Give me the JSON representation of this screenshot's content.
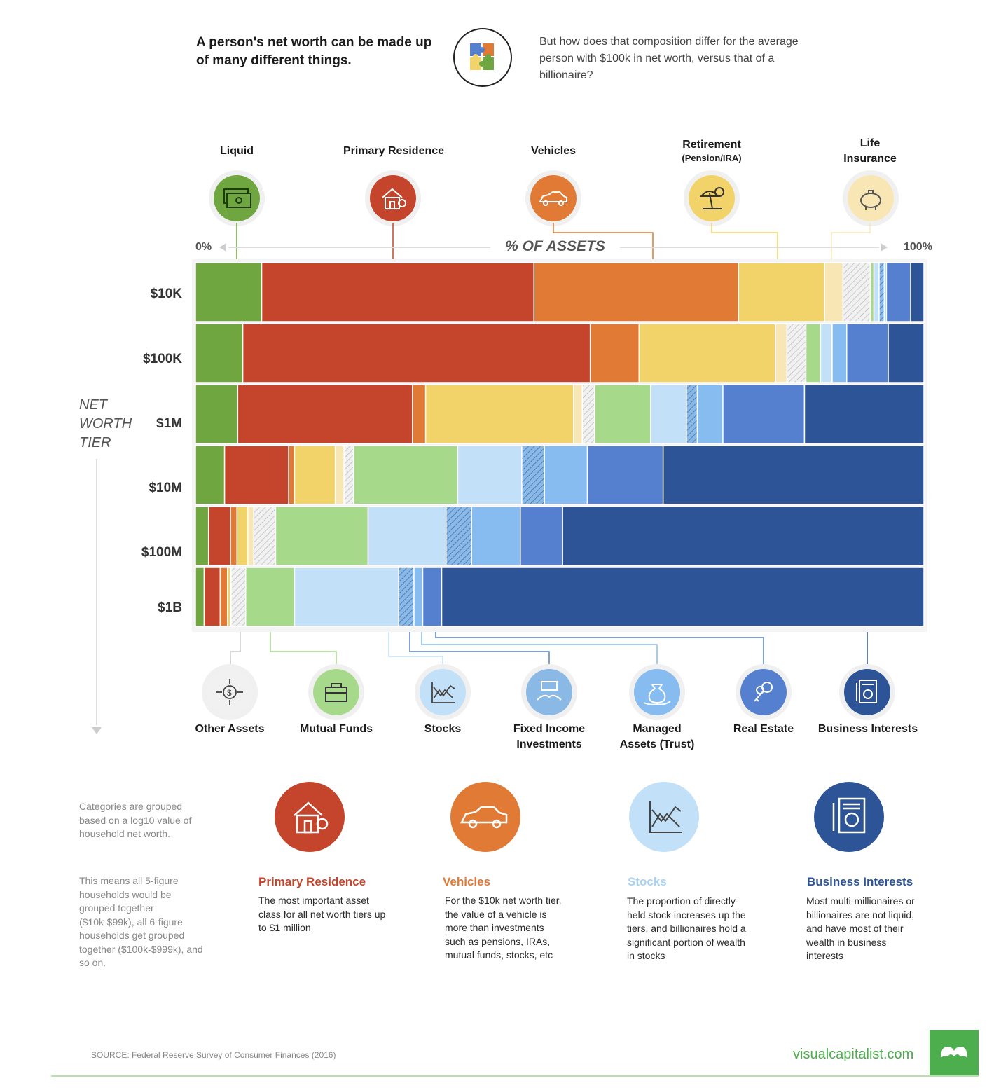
{
  "intro": {
    "left_text": "A person's net worth can be made up of many different things.",
    "right_text": "But how does that composition differ for the average person with $100k in net worth, versus that of a billionaire?",
    "icon": "puzzle-icon"
  },
  "axis": {
    "left": "0%",
    "title": "% OF ASSETS",
    "right": "100%"
  },
  "side_title": [
    "NET",
    "WORTH",
    "TIER"
  ],
  "top_categories": [
    {
      "label": "Liquid",
      "sub": "",
      "icon": "cash-icon",
      "color": "#6fa63f"
    },
    {
      "label": "Primary Residence",
      "sub": "",
      "icon": "house-icon",
      "color": "#c4452c"
    },
    {
      "label": "Vehicles",
      "sub": "",
      "icon": "car-icon",
      "color": "#e07a35"
    },
    {
      "label": "Retirement",
      "sub": "(Pension/IRA)",
      "icon": "beach-umbrella-icon",
      "color": "#f2d36a"
    },
    {
      "label": "Life",
      "sub": "Insurance",
      "icon": "piggy-bank-icon",
      "color": "#f8e7b5"
    }
  ],
  "bottom_categories": [
    {
      "label": "Other Assets",
      "sub": "",
      "icon": "dollar-arrows-icon",
      "color": "#dddddd"
    },
    {
      "label": "Mutual Funds",
      "sub": "",
      "icon": "briefcase-icon",
      "color": "#a6da8a"
    },
    {
      "label": "Stocks",
      "sub": "",
      "icon": "stock-chart-icon",
      "color": "#c2e0f7"
    },
    {
      "label": "Fixed Income",
      "sub": "Investments",
      "icon": "money-hands-icon",
      "color": "#8bb9e6"
    },
    {
      "label": "Managed",
      "sub": "Assets (Trust)",
      "icon": "money-bag-icon",
      "color": "#86bcf0"
    },
    {
      "label": "Real Estate",
      "sub": "",
      "icon": "keys-icon",
      "color": "#5580cf"
    },
    {
      "label": "Business Interests",
      "sub": "",
      "icon": "certificate-icon",
      "color": "#2d5497"
    }
  ],
  "chart_data": {
    "type": "bar",
    "subtype": "stacked-100-horizontal",
    "title": "% OF ASSETS",
    "categories": [
      "$10K",
      "$100K",
      "$1M",
      "$10M",
      "$100M",
      "$1B"
    ],
    "series": [
      {
        "name": "Liquid",
        "color": "#6fa63f",
        "pattern": "solid",
        "values": [
          9.0,
          6.5,
          5.8,
          4.0,
          1.8,
          1.2
        ]
      },
      {
        "name": "Primary Residence",
        "color": "#c4452c",
        "pattern": "solid",
        "values": [
          37.0,
          47.7,
          24.0,
          8.8,
          3.0,
          2.2
        ]
      },
      {
        "name": "Vehicles",
        "color": "#e07a35",
        "pattern": "solid",
        "values": [
          27.8,
          6.7,
          1.8,
          0.8,
          0.9,
          1.0
        ]
      },
      {
        "name": "Retirement (Pension/IRA)",
        "color": "#f2d36a",
        "pattern": "solid",
        "values": [
          11.7,
          18.7,
          20.3,
          5.6,
          1.5,
          0.4
        ]
      },
      {
        "name": "Life Insurance",
        "color": "#f8e7b5",
        "pattern": "solid",
        "values": [
          2.5,
          1.6,
          1.2,
          1.2,
          0.8,
          0.1
        ]
      },
      {
        "name": "Other Assets",
        "color": "#dddddd",
        "pattern": "hatch",
        "values": [
          3.7,
          2.6,
          1.7,
          1.3,
          3.0,
          2.0
        ]
      },
      {
        "name": "Mutual Funds",
        "color": "#a6da8a",
        "pattern": "solid",
        "values": [
          0.5,
          2.0,
          7.7,
          14.3,
          12.7,
          6.7
        ]
      },
      {
        "name": "Stocks",
        "color": "#c2e0f7",
        "pattern": "solid",
        "values": [
          0.7,
          1.5,
          4.9,
          8.8,
          10.7,
          14.3
        ]
      },
      {
        "name": "Fixed Income Investments",
        "color": "#8bb9e6",
        "pattern": "hatch",
        "values": [
          0.7,
          0.1,
          1.5,
          3.1,
          3.5,
          2.1
        ]
      },
      {
        "name": "Managed Assets (Trust)",
        "color": "#86bcf0",
        "pattern": "solid",
        "values": [
          0.3,
          2.0,
          3.5,
          5.9,
          6.7,
          1.2
        ]
      },
      {
        "name": "Real Estate",
        "color": "#5580cf",
        "pattern": "solid",
        "values": [
          3.3,
          5.7,
          11.2,
          10.4,
          5.8,
          2.6
        ]
      },
      {
        "name": "Business Interests",
        "color": "#2d5497",
        "pattern": "solid",
        "values": [
          1.8,
          4.9,
          16.4,
          35.8,
          49.6,
          66.2
        ]
      }
    ],
    "xlim": [
      0,
      100
    ],
    "xlabel": "% OF ASSETS",
    "ylabel": "NET WORTH TIER",
    "legend": "icons above and below chart",
    "grid": false
  },
  "notes": [
    "Categories are grouped based on a log10 value of household net worth.",
    "This means all 5-figure households would be grouped together ($10k-$99k), all 6-figure households get grouped together ($100k-$999k), and so on."
  ],
  "features": [
    {
      "title": "Primary Residence",
      "color": "#c4452c",
      "icon": "house-icon",
      "body": "The most important asset class for all net worth tiers up to $1 million"
    },
    {
      "title": "Vehicles",
      "color": "#e07a35",
      "icon": "car-icon",
      "body": "For the $10k net worth tier, the value of a vehicle is more than investments such as pensions, IRAs, mutual funds, stocks, etc"
    },
    {
      "title": "Stocks",
      "color": "#a9d3f5",
      "icon": "stock-chart-icon",
      "body": "The proportion of directly-held stock increases up the tiers, and billionaires hold a significant portion of wealth in stocks"
    },
    {
      "title": "Business Interests",
      "color": "#2d5497",
      "icon": "certificate-icon",
      "body": "Most multi-millionaires or billionaires are not liquid, and have most of their wealth in business interests"
    }
  ],
  "footer": {
    "source": "SOURCE: Federal Reserve Survey of Consumer Finances (2016)",
    "brand": "visualcapitalist.com",
    "brand_color": "#4cae4c"
  }
}
